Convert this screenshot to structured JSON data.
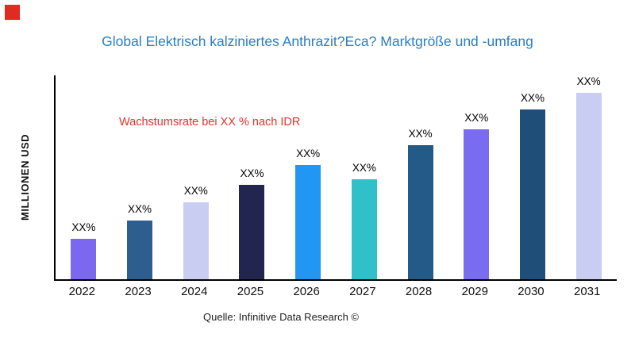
{
  "accent": {
    "title_color": "#2a7ec4",
    "annotation_color": "#e8312a",
    "brand_square_color": "#e02b20",
    "axis_color": "#000000"
  },
  "chart_data": {
    "type": "bar",
    "title": "Global Elektrisch kalziniertes Anthrazit?Eca? Marktgröße und -umfang",
    "ylabel": "MILLIONEN USD",
    "xlabel": "",
    "annotation": "Wachstumsrate bei XX % nach IDR",
    "source": "Quelle: Infinitive Data Research ©",
    "categories": [
      "2022",
      "2023",
      "2024",
      "2025",
      "2026",
      "2027",
      "2028",
      "2029",
      "2030",
      "2031"
    ],
    "values": [
      50,
      72,
      94,
      116,
      140,
      123,
      164,
      184,
      208,
      232
    ],
    "bar_labels": [
      "XX%",
      "XX%",
      "XX%",
      "XX%",
      "XX%",
      "XX%",
      "XX%",
      "XX%",
      "XX%",
      "XX%"
    ],
    "colors": [
      "#7b68ee",
      "#2e5e8e",
      "#c9cdf2",
      "#22254f",
      "#2196f3",
      "#30c0c9",
      "#235a88",
      "#7a6cf0",
      "#1f4e79",
      "#c9cdf2"
    ],
    "ylim": [
      0,
      250
    ],
    "grid": false,
    "legend": false
  }
}
